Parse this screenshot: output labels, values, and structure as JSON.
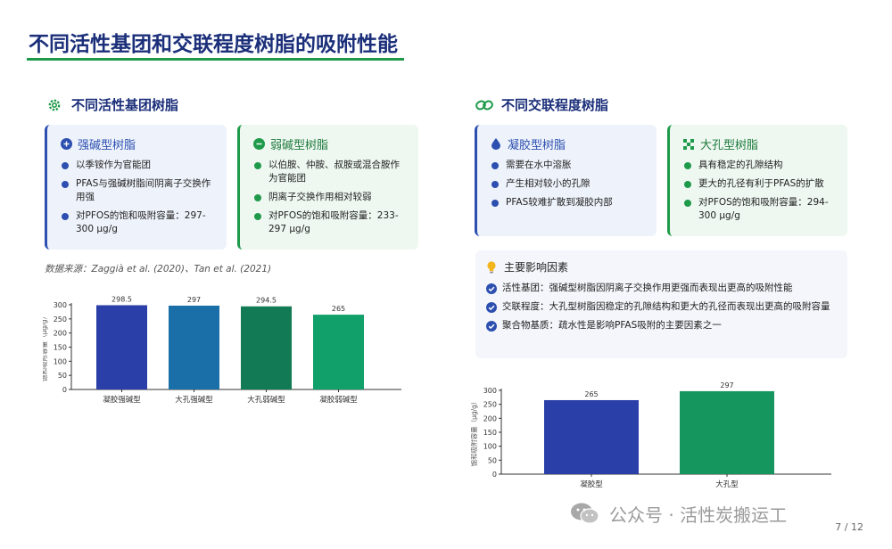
{
  "title": "不同活性基团和交联程度树脂的吸附性能",
  "left_section": {
    "heading": "不同活性基团树脂",
    "strong_card": {
      "title": "强碱型树脂",
      "items": [
        "以季铵作为官能团",
        "PFAS与强碱树脂间阴离子交换作用强",
        "对PFOS的饱和吸附容量：297-300 μg/g"
      ]
    },
    "weak_card": {
      "title": "弱碱型树脂",
      "items": [
        "以伯胺、仲胺、叔胺或混合胺作为官能团",
        "阴离子交换作用相对较弱",
        "对PFOS的饱和吸附容量：233-297 μg/g"
      ]
    },
    "source": "数据来源：Zaggià et al. (2020)、Tan et al. (2021)"
  },
  "right_section": {
    "heading": "不同交联程度树脂",
    "gel_card": {
      "title": "凝胶型树脂",
      "items": [
        "需要在水中溶胀",
        "产生相对较小的孔隙",
        "PFAS较难扩散到凝胶内部"
      ]
    },
    "macro_card": {
      "title": "大孔型树脂",
      "items": [
        "具有稳定的孔隙结构",
        "更大的孔径有利于PFAS的扩散",
        "对PFOS的饱和吸附容量：294-300 μg/g"
      ]
    },
    "factors": {
      "heading": "主要影响因素",
      "items": [
        "活性基团：强碱型树脂因阴离子交换作用更强而表现出更高的吸附性能",
        "交联程度：大孔型树脂因稳定的孔隙结构和更大的孔径而表现出更高的吸附容量",
        "聚合物基质：疏水性是影响PFAS吸附的主要因素之一"
      ]
    }
  },
  "chart_data": [
    {
      "type": "bar",
      "categories": [
        "凝胶强碱型",
        "大孔强碱型",
        "大孔弱碱型",
        "凝胶弱碱型"
      ],
      "values": [
        298.5,
        297,
        294.5,
        265
      ],
      "data_labels": [
        "298.5",
        "297",
        "294.5",
        "265"
      ],
      "colors": [
        "#2b3fa8",
        "#1a6fa8",
        "#127a54",
        "#12a06a"
      ],
      "ylabel": "饱和吸附容量（μg/g）",
      "ylim": [
        0,
        300
      ],
      "yticks": [
        0,
        50,
        100,
        150,
        200,
        250,
        300
      ],
      "grid": false
    },
    {
      "type": "bar",
      "categories": [
        "凝胶型",
        "大孔型"
      ],
      "values": [
        265,
        297
      ],
      "data_labels": [
        "265",
        "297"
      ],
      "colors": [
        "#2b3fa8",
        "#14965e"
      ],
      "ylabel": "饱和吸附容量（μg/g）",
      "ylim": [
        0,
        300
      ],
      "yticks": [
        0,
        50,
        100,
        150,
        200,
        250,
        300
      ],
      "grid": false
    }
  ],
  "watermark": "公众号 · 活性炭搬运工",
  "page_number": "7 / 12",
  "colors": {
    "title": "#1b2f7a",
    "accent_green": "#1f9a4a",
    "accent_blue": "#2c4fb0"
  },
  "icons": [
    "gear-icon",
    "link-icon",
    "plus-circle-icon",
    "minus-circle-icon",
    "droplet-icon",
    "grid-icon",
    "lightbulb-icon",
    "check-circle-icon",
    "wechat-icon"
  ]
}
